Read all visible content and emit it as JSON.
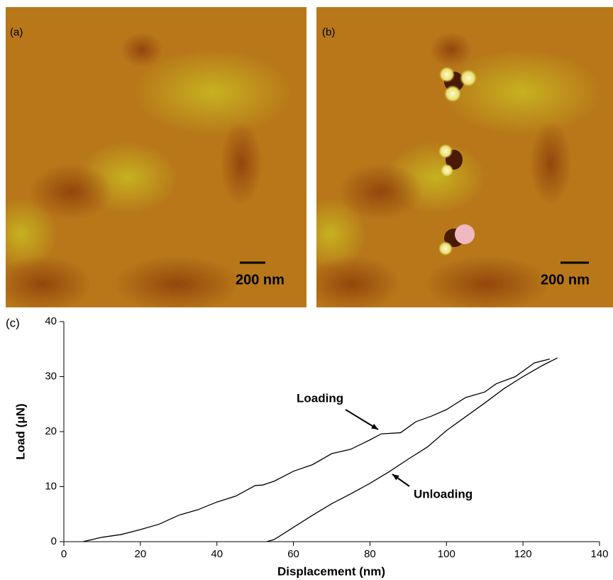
{
  "images": [
    {
      "label": "(a)",
      "scale_bar": "200 nm"
    },
    {
      "label": "(b)",
      "scale_bar": "200 nm"
    }
  ],
  "chart_data": {
    "type": "line",
    "label": "(c)",
    "x_label": "Displacement (nm)",
    "y_label": "Load (μN)",
    "xlim": [
      0,
      140
    ],
    "xticks": [
      0,
      20,
      40,
      60,
      80,
      100,
      120,
      140
    ],
    "ylim": [
      0,
      40
    ],
    "yticks": [
      0,
      10,
      20,
      30,
      40
    ],
    "series": [
      {
        "name": "Loading",
        "color": "#000000",
        "x": [
          5,
          10,
          15,
          20,
          25,
          30,
          35,
          40,
          45,
          50,
          52,
          55,
          60,
          65,
          70,
          75,
          80,
          83,
          88,
          92,
          96,
          100,
          105,
          110,
          113,
          118,
          123,
          127
        ],
        "values": [
          0,
          0.8,
          1.3,
          2.2,
          3.2,
          4.8,
          5.8,
          7.2,
          8.3,
          10.2,
          10.3,
          11,
          12.8,
          14,
          16,
          16.8,
          18.5,
          19.6,
          19.8,
          21.8,
          22.8,
          24,
          26.2,
          27.2,
          28.7,
          30,
          32.5,
          33.2
        ]
      },
      {
        "name": "Unloading",
        "color": "#000000",
        "x": [
          53,
          55,
          60,
          65,
          70,
          75,
          80,
          85,
          90,
          95,
          100,
          105,
          110,
          115,
          120,
          125,
          129
        ],
        "values": [
          0,
          0.4,
          2.6,
          4.8,
          6.9,
          8.7,
          10.6,
          12.7,
          15,
          17.2,
          20.2,
          22.7,
          25.2,
          27.8,
          30,
          32,
          33.4
        ]
      }
    ]
  }
}
